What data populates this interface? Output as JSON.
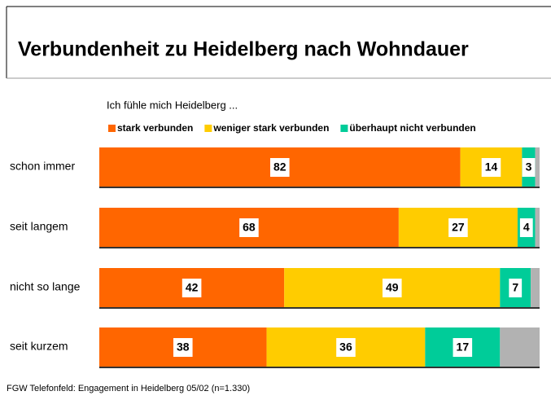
{
  "chart_data": {
    "type": "stacked_bar",
    "orientation": "horizontal",
    "title": "Verbundenheit zu Heidelberg nach Wohndauer",
    "subtitle": "Ich fühle mich Heidelberg ...",
    "footnote": "FGW Telefonfeld: Engagement in Heidelberg 05/02 (n=1.330)",
    "categories": [
      "schon immer",
      "seit langem",
      "nicht so lange",
      "seit kurzem"
    ],
    "series": [
      {
        "name": "stark verbunden",
        "color": "#ff6600",
        "values": [
          82,
          68,
          42,
          38
        ]
      },
      {
        "name": "weniger stark verbunden",
        "color": "#ffcc00",
        "values": [
          14,
          27,
          49,
          36
        ]
      },
      {
        "name": "überhaupt nicht verbunden",
        "color": "#00cc99",
        "values": [
          3,
          4,
          7,
          17
        ]
      },
      {
        "color": "#b2b2b2",
        "values": [
          1,
          1,
          2,
          9
        ]
      }
    ],
    "xlim": [
      0,
      100
    ]
  }
}
